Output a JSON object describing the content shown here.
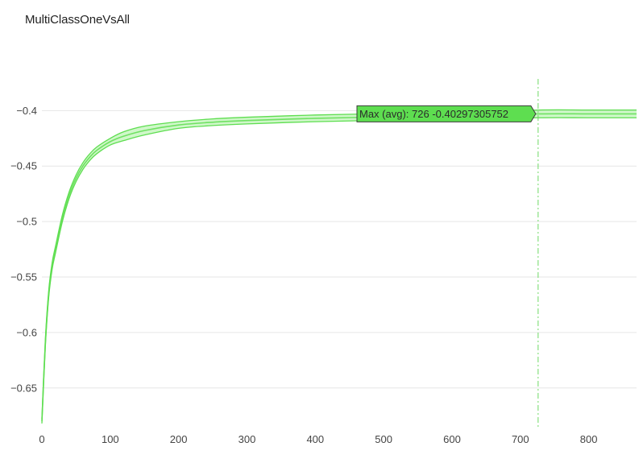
{
  "chart_data": {
    "type": "line",
    "title": "MultiClassOneVsAll",
    "xlabel": "",
    "ylabel": "",
    "xlim": [
      0,
      870
    ],
    "ylim": [
      -0.685,
      -0.378
    ],
    "x_ticks": [
      0,
      100,
      200,
      300,
      400,
      500,
      600,
      700,
      800
    ],
    "y_ticks": [
      -0.4,
      -0.45,
      -0.5,
      -0.55,
      -0.6,
      -0.65
    ],
    "grid": "horizontal",
    "series": [
      {
        "color": "#5ede50",
        "band_color": "#a8f09d",
        "x": [
          0,
          5,
          10,
          15,
          20,
          30,
          40,
          50,
          60,
          70,
          80,
          100,
          120,
          150,
          200,
          250,
          300,
          400,
          500,
          600,
          726,
          800,
          870
        ],
        "y": [
          -0.68,
          -0.61,
          -0.565,
          -0.54,
          -0.525,
          -0.497,
          -0.476,
          -0.461,
          -0.45,
          -0.442,
          -0.436,
          -0.428,
          -0.423,
          -0.418,
          -0.413,
          -0.4105,
          -0.409,
          -0.407,
          -0.4058,
          -0.405,
          -0.403,
          -0.403,
          -0.403
        ],
        "upper": [
          -0.678,
          -0.607,
          -0.562,
          -0.537,
          -0.522,
          -0.494,
          -0.473,
          -0.458,
          -0.447,
          -0.439,
          -0.433,
          -0.425,
          -0.419,
          -0.414,
          -0.41,
          -0.4075,
          -0.406,
          -0.404,
          -0.4028,
          -0.402,
          -0.3995,
          -0.3995,
          -0.3995
        ],
        "lower": [
          -0.682,
          -0.613,
          -0.568,
          -0.543,
          -0.528,
          -0.5,
          -0.479,
          -0.464,
          -0.453,
          -0.445,
          -0.439,
          -0.431,
          -0.427,
          -0.422,
          -0.416,
          -0.4135,
          -0.412,
          -0.41,
          -0.4088,
          -0.408,
          -0.4065,
          -0.4065,
          -0.4065
        ]
      }
    ],
    "annotations": {
      "vline_x": 726,
      "vline_style": "dash-dot",
      "hover_text": "Max (avg): 726 -0.40297305752",
      "hover_x": 726,
      "hover_y": -0.40297305752,
      "hover_bg": "#5ede50"
    }
  }
}
